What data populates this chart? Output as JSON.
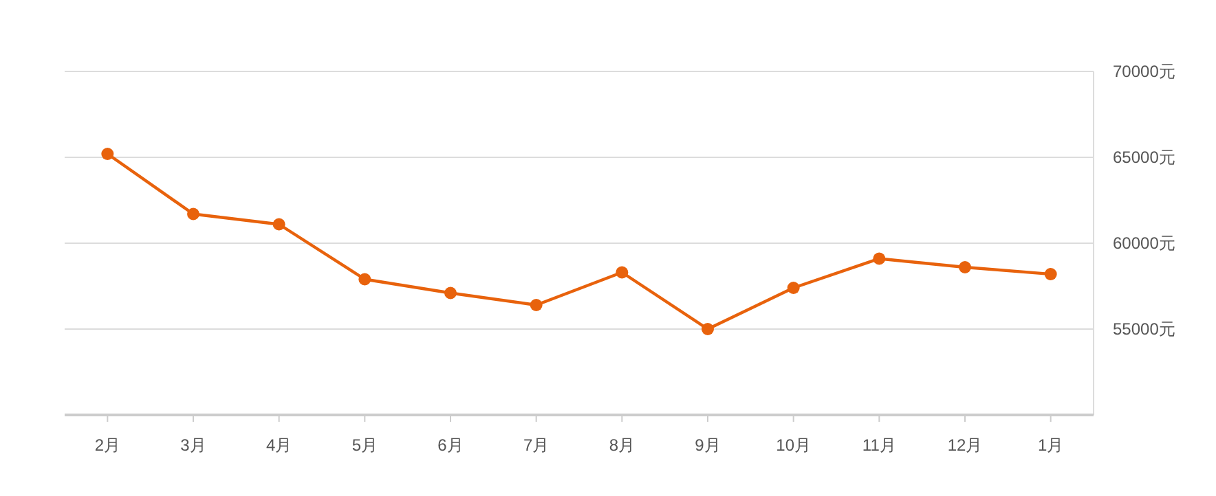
{
  "chart_data": {
    "type": "line",
    "categories": [
      "2月",
      "3月",
      "4月",
      "5月",
      "6月",
      "7月",
      "8月",
      "9月",
      "10月",
      "11月",
      "12月",
      "1月"
    ],
    "series": [
      {
        "color": "#e8620c",
        "values": [
          65200,
          61700,
          61100,
          57900,
          57100,
          56400,
          58300,
          55000,
          57400,
          59100,
          58600,
          58200
        ]
      }
    ],
    "ylim": [
      50000,
      70000
    ],
    "yticks": [
      {
        "value": 50000,
        "label": null
      },
      {
        "value": 55000,
        "label": "55000元"
      },
      {
        "value": 60000,
        "label": "60000元"
      },
      {
        "value": 65000,
        "label": "65000元"
      },
      {
        "value": 70000,
        "label": "70000元"
      }
    ],
    "grid": "y",
    "marker": "circle",
    "line_style": "solid"
  }
}
